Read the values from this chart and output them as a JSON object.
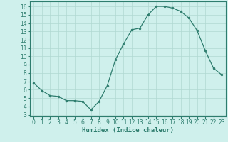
{
  "x": [
    0,
    1,
    2,
    3,
    4,
    5,
    6,
    7,
    8,
    9,
    10,
    11,
    12,
    13,
    14,
    15,
    16,
    17,
    18,
    19,
    20,
    21,
    22,
    23
  ],
  "y": [
    6.8,
    5.9,
    5.3,
    5.2,
    4.7,
    4.7,
    4.6,
    3.6,
    4.6,
    6.5,
    9.6,
    11.5,
    13.2,
    13.4,
    15.0,
    16.0,
    16.0,
    15.8,
    15.4,
    14.6,
    13.1,
    10.7,
    8.6,
    7.8
  ],
  "line_color": "#2e7d6e",
  "marker": "o",
  "marker_size": 2,
  "bg_color": "#cff0ec",
  "grid_color": "#b0d8d2",
  "xlabel": "Humidex (Indice chaleur)",
  "xlim": [
    -0.5,
    23.5
  ],
  "ylim": [
    2.8,
    16.6
  ],
  "yticks": [
    3,
    4,
    5,
    6,
    7,
    8,
    9,
    10,
    11,
    12,
    13,
    14,
    15,
    16
  ],
  "xticks": [
    0,
    1,
    2,
    3,
    4,
    5,
    6,
    7,
    8,
    9,
    10,
    11,
    12,
    13,
    14,
    15,
    16,
    17,
    18,
    19,
    20,
    21,
    22,
    23
  ],
  "label_fontsize": 6.5,
  "tick_fontsize": 5.5
}
